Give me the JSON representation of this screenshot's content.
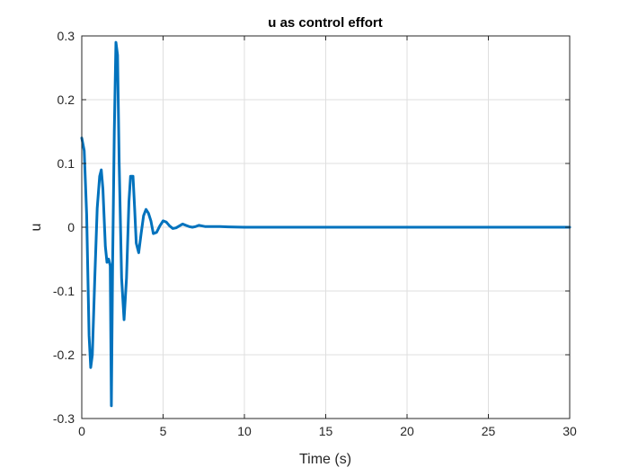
{
  "chart_data": {
    "type": "line",
    "title": "u as control effort",
    "xlabel": "Time (s)",
    "ylabel": "u",
    "xlim": [
      0,
      30
    ],
    "ylim": [
      -0.3,
      0.3
    ],
    "xticks": [
      0,
      5,
      10,
      15,
      20,
      25,
      30
    ],
    "yticks": [
      -0.3,
      -0.2,
      -0.1,
      0,
      0.1,
      0.2,
      0.3
    ],
    "xtick_labels": [
      "0",
      "5",
      "10",
      "15",
      "20",
      "25",
      "30"
    ],
    "ytick_labels": [
      "-0.3",
      "-0.2",
      "-0.1",
      "0",
      "0.1",
      "0.2",
      "0.3"
    ],
    "grid": true,
    "legend": "none",
    "series": [
      {
        "color": "#0072BD",
        "x": [
          0,
          0.15,
          0.3,
          0.45,
          0.55,
          0.65,
          0.8,
          0.95,
          1.1,
          1.2,
          1.3,
          1.45,
          1.55,
          1.65,
          1.75,
          1.82,
          1.9,
          2.0,
          2.1,
          2.2,
          2.3,
          2.45,
          2.6,
          2.75,
          2.9,
          3.0,
          3.15,
          3.25,
          3.35,
          3.5,
          3.65,
          3.8,
          3.95,
          4.1,
          4.25,
          4.4,
          4.6,
          4.8,
          5.0,
          5.2,
          5.4,
          5.6,
          5.8,
          6.0,
          6.2,
          6.4,
          6.6,
          6.8,
          7.0,
          7.2,
          7.4,
          7.6,
          8.0,
          8.5,
          9.0,
          10,
          11,
          12,
          14,
          16,
          18,
          20,
          22,
          24,
          26,
          28,
          30
        ],
        "y": [
          0.14,
          0.12,
          0.02,
          -0.17,
          -0.22,
          -0.2,
          -0.08,
          0.03,
          0.08,
          0.09,
          0.06,
          -0.03,
          -0.055,
          -0.05,
          -0.06,
          -0.28,
          -0.05,
          0.15,
          0.29,
          0.27,
          0.1,
          -0.08,
          -0.145,
          -0.08,
          0.04,
          0.08,
          0.08,
          0.03,
          -0.025,
          -0.04,
          -0.01,
          0.018,
          0.028,
          0.022,
          0.01,
          -0.01,
          -0.008,
          0.002,
          0.01,
          0.008,
          0.002,
          -0.002,
          -0.001,
          0.002,
          0.005,
          0.003,
          0.001,
          0.0,
          0.001,
          0.003,
          0.002,
          0.001,
          0.001,
          0.001,
          0.0005,
          0.0,
          0.0,
          0.0,
          0.0,
          0.0,
          0.0,
          0.0,
          0.0,
          0.0,
          0.0,
          0.0,
          0.0
        ]
      }
    ]
  }
}
